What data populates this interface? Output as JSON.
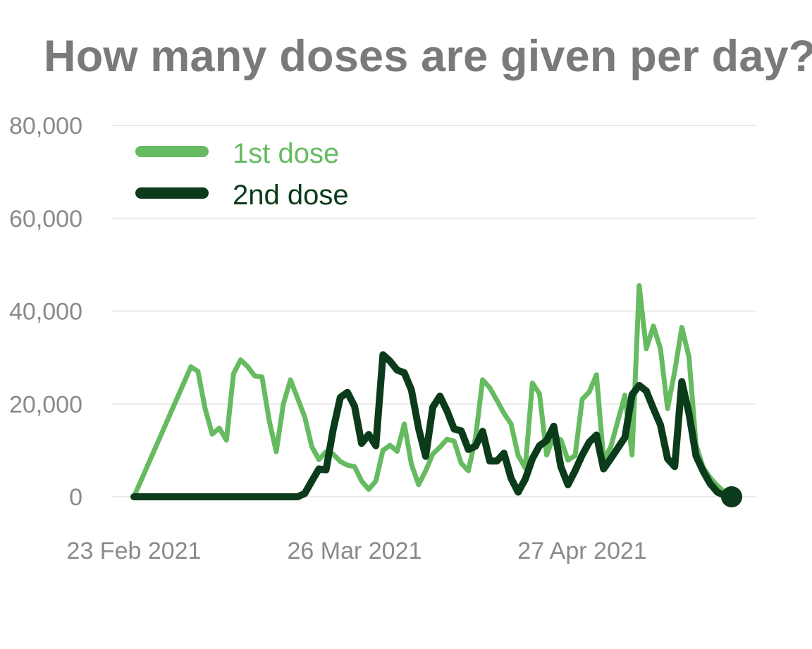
{
  "page": {
    "title": "How many doses are given per day?"
  },
  "chart_data": {
    "type": "line",
    "title": "How many doses are given per day?",
    "xlabel": "",
    "ylabel": "",
    "ylim": [
      0,
      80000
    ],
    "yticks": [
      0,
      20000,
      40000,
      60000,
      80000
    ],
    "ytick_labels": [
      "0",
      "20,000",
      "40,000",
      "60,000",
      "80,000"
    ],
    "xlim": [
      "2021-02-23",
      "2021-05-18"
    ],
    "xticks": [
      "2021-02-23",
      "2021-03-26",
      "2021-04-27"
    ],
    "xtick_labels": [
      "23 Feb 2021",
      "26 Mar 2021",
      "27 Apr 2021"
    ],
    "grid": true,
    "legend_position": "top-left",
    "series": [
      {
        "name": "1st dose",
        "color": "#66bb61",
        "x": [
          "2021-02-23",
          "2021-03-03",
          "2021-03-04",
          "2021-03-05",
          "2021-03-06",
          "2021-03-07",
          "2021-03-08",
          "2021-03-09",
          "2021-03-10",
          "2021-03-11",
          "2021-03-12",
          "2021-03-13",
          "2021-03-14",
          "2021-03-15",
          "2021-03-16",
          "2021-03-17",
          "2021-03-18",
          "2021-03-19",
          "2021-03-20",
          "2021-03-21",
          "2021-03-22",
          "2021-03-23",
          "2021-03-24",
          "2021-03-25",
          "2021-03-26",
          "2021-03-27",
          "2021-03-28",
          "2021-03-29",
          "2021-03-30",
          "2021-03-31",
          "2021-04-01",
          "2021-04-02",
          "2021-04-03",
          "2021-04-04",
          "2021-04-05",
          "2021-04-06",
          "2021-04-07",
          "2021-04-08",
          "2021-04-09",
          "2021-04-10",
          "2021-04-11",
          "2021-04-12",
          "2021-04-13",
          "2021-04-14",
          "2021-04-15",
          "2021-04-16",
          "2021-04-17",
          "2021-04-18",
          "2021-04-19",
          "2021-04-20",
          "2021-04-21",
          "2021-04-22",
          "2021-04-23",
          "2021-04-24",
          "2021-04-25",
          "2021-04-26",
          "2021-04-27",
          "2021-04-28",
          "2021-04-29",
          "2021-04-30",
          "2021-05-01",
          "2021-05-02",
          "2021-05-03",
          "2021-05-04",
          "2021-05-05",
          "2021-05-06",
          "2021-05-07",
          "2021-05-08",
          "2021-05-09",
          "2021-05-10",
          "2021-05-11",
          "2021-05-12",
          "2021-05-13",
          "2021-05-14",
          "2021-05-15",
          "2021-05-16",
          "2021-05-17",
          "2021-05-18"
        ],
        "y": [
          0,
          28000,
          27000,
          19000,
          13500,
          14800,
          12200,
          26500,
          29500,
          28000,
          26000,
          25800,
          16500,
          9700,
          20000,
          25200,
          21200,
          17200,
          10800,
          8000,
          9700,
          9200,
          7600,
          6800,
          6500,
          3400,
          1600,
          3400,
          10000,
          11100,
          9800,
          15700,
          7000,
          2600,
          5600,
          9200,
          10700,
          12400,
          12000,
          7200,
          5600,
          12700,
          25200,
          23500,
          20800,
          18000,
          15700,
          8900,
          6200,
          24500,
          22200,
          9000,
          13000,
          12300,
          7900,
          8900,
          21000,
          22600,
          26300,
          8000,
          10700,
          16300,
          21900,
          9000,
          45500,
          31900,
          36800,
          31900,
          19000,
          27000,
          36500,
          30200,
          11200,
          6300,
          4100,
          2400,
          1000,
          0
        ]
      },
      {
        "name": "2nd dose",
        "color": "#0b3b1a",
        "x": [
          "2021-02-23",
          "2021-03-17",
          "2021-03-18",
          "2021-03-19",
          "2021-03-20",
          "2021-03-21",
          "2021-03-22",
          "2021-03-23",
          "2021-03-24",
          "2021-03-25",
          "2021-03-26",
          "2021-03-27",
          "2021-03-28",
          "2021-03-29",
          "2021-03-30",
          "2021-03-31",
          "2021-04-01",
          "2021-04-02",
          "2021-04-03",
          "2021-04-04",
          "2021-04-05",
          "2021-04-06",
          "2021-04-07",
          "2021-04-08",
          "2021-04-09",
          "2021-04-10",
          "2021-04-11",
          "2021-04-12",
          "2021-04-13",
          "2021-04-14",
          "2021-04-15",
          "2021-04-16",
          "2021-04-17",
          "2021-04-18",
          "2021-04-19",
          "2021-04-20",
          "2021-04-21",
          "2021-04-22",
          "2021-04-23",
          "2021-04-24",
          "2021-04-25",
          "2021-04-26",
          "2021-04-27",
          "2021-04-28",
          "2021-04-29",
          "2021-04-30",
          "2021-05-01",
          "2021-05-02",
          "2021-05-03",
          "2021-05-04",
          "2021-05-05",
          "2021-05-06",
          "2021-05-07",
          "2021-05-08",
          "2021-05-09",
          "2021-05-10",
          "2021-05-11",
          "2021-05-12",
          "2021-05-13",
          "2021-05-14",
          "2021-05-15",
          "2021-05-16",
          "2021-05-17",
          "2021-05-18"
        ],
        "y": [
          0,
          0,
          0,
          700,
          3400,
          6000,
          5800,
          14500,
          21400,
          22500,
          19500,
          11500,
          13400,
          11000,
          30600,
          29200,
          27300,
          26700,
          23000,
          14800,
          8700,
          19300,
          21700,
          18500,
          14600,
          14200,
          10200,
          10900,
          14100,
          7700,
          7700,
          9400,
          4000,
          1000,
          3800,
          8200,
          11000,
          12100,
          15200,
          6500,
          2600,
          5600,
          9000,
          11800,
          13300,
          6000,
          8200,
          10500,
          12800,
          22000,
          24000,
          22800,
          19000,
          15500,
          8200,
          6500,
          24800,
          18000,
          8800,
          5500,
          2800,
          1000,
          300,
          0
        ]
      }
    ]
  }
}
